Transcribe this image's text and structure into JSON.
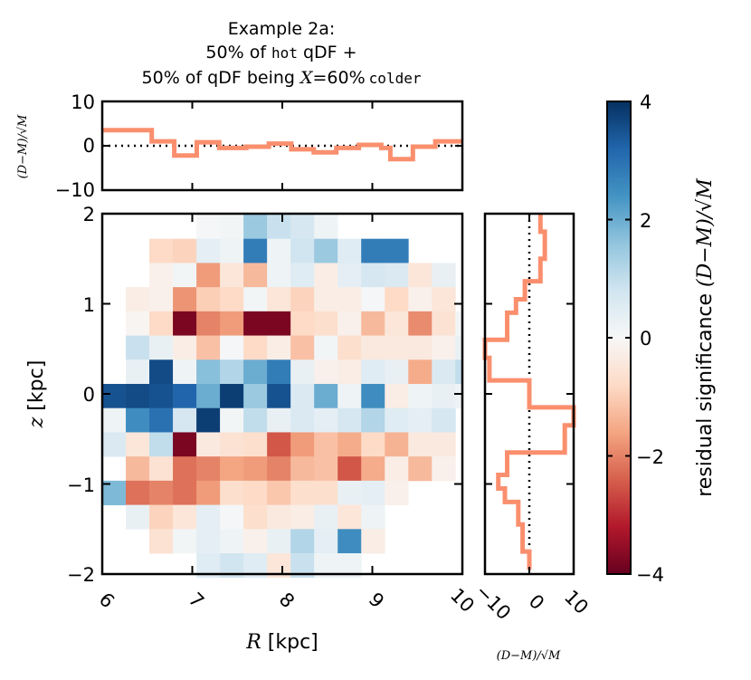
{
  "chart_data": {
    "type": "heatmap",
    "title": {
      "line1": "Example 2a:",
      "line2_pre": "50% of ",
      "line2_mono": "hot",
      "line2_post": " qDF +",
      "line3_pre": "50% of qDF being ",
      "line3_var": "X",
      "line3_eq": "=60%",
      "line3_mono": "colder"
    },
    "xlabel": {
      "var": "R",
      "unit": " [kpc]"
    },
    "ylabel": {
      "var": "z",
      "unit": " [kpc]"
    },
    "xlim": [
      6,
      10
    ],
    "ylim": [
      -2,
      2
    ],
    "xticks": [
      "6",
      "7",
      "8",
      "9",
      "10"
    ],
    "yticks": [
      "−2",
      "−1",
      "0",
      "1",
      "2"
    ],
    "residual_label": "(D−M)/√M",
    "colorbar": {
      "label_text": "residual significance ",
      "label_math": "(D−M)/√M",
      "range": [
        -4,
        4
      ],
      "ticks": [
        "−4",
        "−2",
        "0",
        "2",
        "4"
      ],
      "colors": [
        "#67001f",
        "#b2182b",
        "#d6604d",
        "#f4a582",
        "#fddbc7",
        "#f7f7f7",
        "#d1e5f0",
        "#92c5de",
        "#4393c3",
        "#2166ac",
        "#053061"
      ]
    },
    "top_panel": {
      "ylim": [
        -10,
        10
      ],
      "yticks": [
        "10",
        "0",
        "−10"
      ],
      "line_color": "#fa8f6e",
      "bin_edges": [
        6.0,
        6.55,
        6.8,
        7.05,
        7.3,
        7.6,
        7.85,
        8.1,
        8.35,
        8.6,
        8.85,
        9.1,
        9.2,
        9.45,
        9.7,
        10.0
      ],
      "values": [
        3.5,
        1.0,
        -2.2,
        0.8,
        -0.5,
        -0.2,
        0.5,
        -0.8,
        -1.5,
        -0.5,
        0.2,
        -0.5,
        -3.0,
        -0.2,
        1.0
      ]
    },
    "side_panel": {
      "xlim": [
        -10,
        10
      ],
      "xticks": [
        "−10",
        "0",
        "10"
      ],
      "line_color": "#fa8f6e",
      "z_edges": [
        2.0,
        1.8,
        1.5,
        1.25,
        1.05,
        0.9,
        0.6,
        0.4,
        0.15,
        -0.15,
        -0.35,
        -0.65,
        -0.9,
        -1.05,
        -1.2,
        -1.45,
        -1.75,
        -1.95
      ],
      "values": [
        2.5,
        3.5,
        2.5,
        -1.0,
        -3.0,
        -5.0,
        -10.0,
        -9.0,
        0.0,
        10.0,
        8.0,
        -5.0,
        -7.0,
        -5.5,
        -2.5,
        -1.5,
        0.0
      ]
    },
    "grid": {
      "r_start": 6.0,
      "r_step": 0.2615,
      "z_start": 1.99,
      "z_step": 0.2685,
      "rows": [
        [
          null,
          null,
          null,
          null,
          0.05,
          0.1,
          1.5,
          0.9,
          0.7,
          0.2,
          null,
          null,
          null,
          null,
          null
        ],
        [
          null,
          null,
          -0.8,
          -0.9,
          0.4,
          0.2,
          2.8,
          0.2,
          0.8,
          1.5,
          0.5,
          2.8,
          2.8,
          null,
          null
        ],
        [
          null,
          null,
          -0.2,
          0.1,
          -1.7,
          -0.5,
          -1.3,
          0.2,
          0.5,
          -0.3,
          0.4,
          0.7,
          0.6,
          -0.5,
          0.3
        ],
        [
          null,
          -0.3,
          -0.2,
          -1.8,
          -1.0,
          -0.8,
          0.1,
          -0.5,
          -0.9,
          -0.3,
          -0.3,
          0.05,
          -0.8,
          -0.2,
          -0.5
        ],
        [
          null,
          -0.1,
          -0.8,
          -3.8,
          -2.0,
          -1.7,
          -3.8,
          -3.8,
          -0.8,
          -0.7,
          -0.2,
          -1.3,
          -0.5,
          -1.9,
          -0.6,
          0.1
        ],
        [
          null,
          0.9,
          0.3,
          -0.3,
          -1.2,
          0.05,
          -0.8,
          -0.3,
          -1.2,
          0.1,
          -0.7,
          -0.4,
          -0.4,
          -0.4,
          -0.2,
          0.3
        ],
        [
          null,
          0.3,
          3.6,
          0.2,
          1.7,
          1.2,
          2.0,
          2.8,
          0.3,
          -0.2,
          -0.3,
          0.5,
          0.3,
          -1.5,
          0.6,
          1.0
        ],
        [
          3.5,
          3.6,
          3.5,
          3.2,
          2.0,
          3.8,
          1.5,
          3.5,
          0.6,
          2.0,
          0.2,
          2.5,
          -0.3,
          0.2,
          0.3,
          0.2
        ],
        [
          0.2,
          2.5,
          3.0,
          0.7,
          3.8,
          0.1,
          1.0,
          0.3,
          0.6,
          0.4,
          0.7,
          1.2,
          0.5,
          0.4,
          0.7,
          null
        ],
        [
          0.6,
          -0.5,
          1.0,
          -3.8,
          -0.4,
          -0.6,
          -0.7,
          -2.5,
          -1.7,
          -1.2,
          -1.5,
          -0.8,
          -1.4,
          -0.4,
          -0.4,
          null
        ],
        [
          null,
          -1.3,
          -0.6,
          -2.2,
          -2.0,
          -1.6,
          -1.7,
          -2.0,
          -1.3,
          -1.2,
          -2.5,
          -1.5,
          -0.3,
          -1.3,
          -0.2,
          null
        ],
        [
          1.8,
          -2.2,
          -2.0,
          -2.2,
          -1.7,
          -0.7,
          -0.8,
          -1.1,
          -0.7,
          -0.7,
          0.3,
          0.4,
          -0.2,
          null,
          null,
          null
        ],
        [
          null,
          0.3,
          -0.9,
          -0.5,
          0.4,
          0.05,
          -0.7,
          -0.4,
          -0.3,
          0.3,
          -0.5,
          0.2,
          null,
          null,
          null,
          null
        ],
        [
          null,
          null,
          -0.6,
          0.1,
          0.4,
          0.2,
          -0.2,
          0.3,
          1.2,
          0.4,
          2.5,
          -0.3,
          null,
          null,
          null,
          null
        ],
        [
          null,
          null,
          null,
          null,
          0.5,
          0.8,
          0.5,
          -0.5,
          0.9,
          0.2,
          0.2,
          null,
          null,
          null,
          null,
          null
        ]
      ]
    }
  }
}
